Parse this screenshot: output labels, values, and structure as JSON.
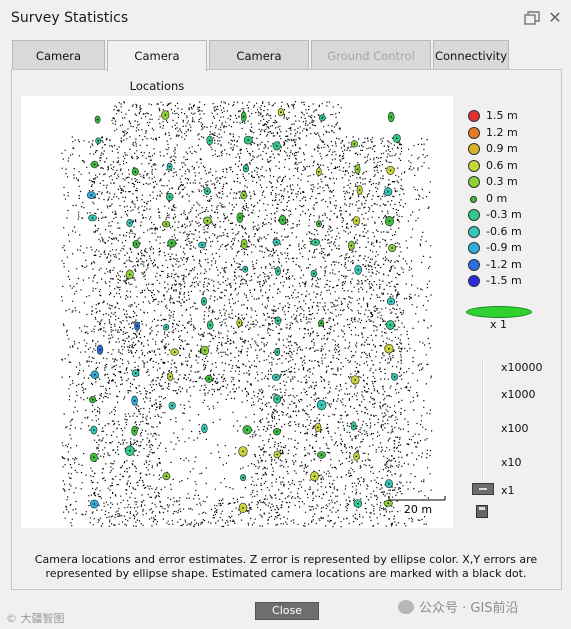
{
  "window": {
    "title": "Survey Statistics",
    "close_glyph": "✕"
  },
  "tabs": [
    {
      "label": "Camera Overlap",
      "state": "normal"
    },
    {
      "label": "Camera Locations",
      "state": "active"
    },
    {
      "label": "Camera Rotations",
      "state": "normal"
    },
    {
      "label": "Ground Control Points",
      "state": "disabled"
    },
    {
      "label": "Connectivity",
      "state": "normal"
    }
  ],
  "legend": {
    "title": "",
    "items": [
      {
        "label": "1.5 m",
        "color": "#e13232"
      },
      {
        "label": "1.2 m",
        "color": "#e87a26"
      },
      {
        "label": "0.9 m",
        "color": "#d8b428"
      },
      {
        "label": "0.6 m",
        "color": "#c9d63a"
      },
      {
        "label": "0.3 m",
        "color": "#8ed038"
      },
      {
        "label": "0 m",
        "color": "#3dbe3d"
      },
      {
        "label": "-0.3 m",
        "color": "#33c98a"
      },
      {
        "label": "-0.6 m",
        "color": "#33c9b8"
      },
      {
        "label": "-0.9 m",
        "color": "#2eaedb"
      },
      {
        "label": "-1.2 m",
        "color": "#2b6fe0"
      },
      {
        "label": "-1.5 m",
        "color": "#2a2ae0"
      }
    ]
  },
  "scale": {
    "ellipse_label": "x 1",
    "ellipse_color": "#2fd02f",
    "distance_label": "20 m"
  },
  "exaggeration": {
    "options": [
      "x10000",
      "x1000",
      "x100",
      "x10",
      "x1"
    ],
    "selected": "x1"
  },
  "caption": "Camera locations and error estimates. Z error is represented by ellipse color. X,Y errors are represented by ellipse shape. Estimated camera locations are marked with a black dot.",
  "close_button": "Close",
  "watermark": {
    "left": "© 大疆智图",
    "right": "公众号 · GIS前沿"
  }
}
